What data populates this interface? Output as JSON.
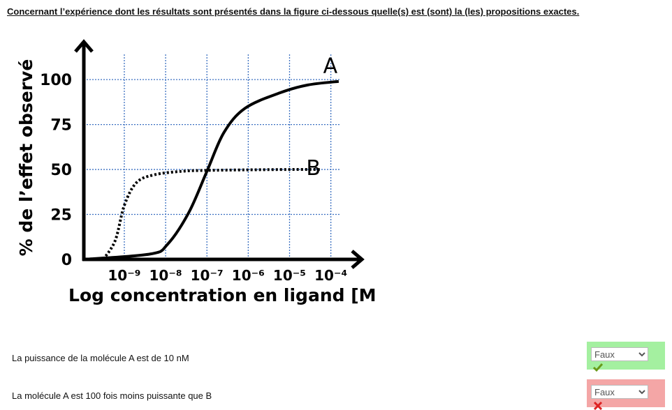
{
  "question": "Concernant l’expérience dont les résultats sont présentés dans la figure ci-dessous quelle(s) est (sont) la (les) propositions exactes.",
  "chart_data": {
    "type": "line",
    "ylabel": "% de l’effet observé",
    "xlabel": "Log concentration en ligand [M]",
    "xlim": [
      -9.98,
      -3.25
    ],
    "ylim": [
      0,
      121
    ],
    "xticks": [
      {
        "value": -9,
        "label": "10⁻⁹"
      },
      {
        "value": -8,
        "label": "10⁻⁸"
      },
      {
        "value": -7,
        "label": "10⁻⁷"
      },
      {
        "value": -6,
        "label": "10⁻⁶"
      },
      {
        "value": -5,
        "label": "10⁻⁵"
      },
      {
        "value": -4,
        "label": "10⁻⁴"
      }
    ],
    "yticks": [
      0,
      25,
      50,
      75,
      100
    ],
    "grid": true,
    "series": [
      {
        "name": "A",
        "color": "#000000",
        "style": "solid",
        "x": [
          -9.98,
          -8.37,
          -7.95,
          -7.44,
          -7,
          -6.59,
          -6.08,
          -5.24,
          -4.56,
          -3.81
        ],
        "values": [
          0,
          3,
          8.5,
          26,
          49,
          70.5,
          84,
          92.6,
          97,
          99
        ]
      },
      {
        "name": "B",
        "color": "#000000",
        "style": "dotted",
        "x": [
          -9.51,
          -9.22,
          -9,
          -8.71,
          -8.29,
          -7.61,
          -7,
          -6,
          -5,
          -4.22
        ],
        "values": [
          0,
          10.5,
          30,
          42.6,
          47,
          49,
          49.5,
          49.8,
          50,
          50
        ]
      }
    ]
  },
  "items": [
    {
      "text": "La puissance de la molécule A est de 10 nM",
      "answer": "Faux",
      "correct": true
    },
    {
      "text": "La molécule A est 100 fois moins puissante que B",
      "answer": "Faux",
      "correct": false
    }
  ]
}
